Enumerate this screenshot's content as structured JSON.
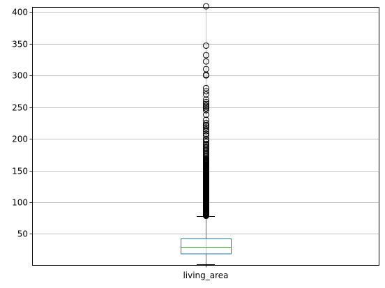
{
  "chart_data": {
    "type": "box",
    "categories": [
      "living_area"
    ],
    "xlabel": "",
    "ylabel": "",
    "ylim": [
      1.0,
      408.0
    ],
    "yticks": [
      50,
      100,
      150,
      200,
      250,
      300,
      350,
      400
    ],
    "ytick_labels": [
      "50",
      "100",
      "150",
      "200",
      "250",
      "300",
      "350",
      "400"
    ],
    "grid": true,
    "box": {
      "name": "living_area",
      "q1": 18.6,
      "median": 30.0,
      "q3": 42.3,
      "whisker_low": 2.0,
      "whisker_high": 78.0,
      "outliers": [
        78.5,
        79,
        79.5,
        80,
        80.5,
        81,
        81.5,
        82,
        82.5,
        83,
        83.5,
        84,
        84.5,
        85,
        86,
        87,
        88,
        89,
        90,
        91,
        92,
        93,
        94,
        95,
        96,
        97,
        98,
        99,
        100,
        101,
        102,
        103,
        104,
        105,
        106,
        107,
        108,
        109,
        110,
        111,
        112,
        113,
        114,
        115,
        116,
        117,
        118,
        119,
        120,
        121,
        122,
        123,
        124,
        125,
        126,
        127,
        128,
        129,
        130,
        131,
        132,
        133,
        134,
        135,
        136,
        137,
        138,
        139,
        140,
        141,
        142,
        143,
        144,
        145,
        146,
        147,
        148,
        149,
        150,
        151,
        152,
        153,
        154,
        155,
        156,
        157,
        158,
        159,
        160,
        161,
        162,
        163,
        164,
        165,
        166,
        167,
        168,
        170,
        172,
        174,
        176,
        178,
        180,
        182,
        184,
        186,
        188,
        190,
        192,
        195,
        198,
        200,
        205,
        208,
        212,
        215,
        218,
        220,
        222,
        225,
        230,
        238,
        245,
        248,
        250,
        252,
        255,
        258,
        262,
        270,
        275,
        280,
        300,
        301,
        310,
        322,
        332,
        347,
        409
      ]
    },
    "colors": {
      "box": "#1f77b4",
      "median": "#2ca02c",
      "whisker_cap": "#000000",
      "outlier_edge": "#000000",
      "grid": "#b0b0b0"
    }
  }
}
